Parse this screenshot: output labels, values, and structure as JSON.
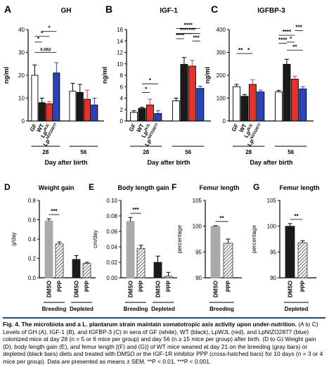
{
  "caption": {
    "lead": "Fig. 4. The microbiota and a L. plantarum strain maintain somatotropic axis activity upon under-nutrition.",
    "body": "(A to C) Levels of GH (A), IGF-1 (B), and IGFBP-3 (C) in sera of GF (white), WT (black), LpWJL (red), and LpNIZO2877 (blue) colonized mice at day 28 (n = 5 or 6 mice per group) and day 56 (n ≥ 15 mice per group) after birth. (D to G) Weight gain (D), body length gain (E), and femur length [(F) and (G)] of WT mice weaned at day 21 on the breeding (gray bars) or depleted (black bars) diets and treated with DMSO or the IGF-1R inhibitor PPP (cross-hatched bars) for 10 days (n = 3 or 4 mice per group). Data are presented as means ± SEM. **P < 0.01, ***P < 0.001."
  },
  "colors": {
    "GF": "#ffffff",
    "WT": "#1a1a1a",
    "LpWJL": "#e8312f",
    "LpNIZO2877": "#2b43b8",
    "DMSO_breeding": "#a9a9a9",
    "depleted": "#1a1a1a"
  },
  "chart_data": [
    {
      "panel": "A",
      "type": "bar",
      "title": "GH",
      "ylabel": "ng/ml",
      "xlabel": "Day after birth",
      "ylim": [
        0,
        40
      ],
      "yticks": [
        0,
        10,
        20,
        30,
        40
      ],
      "groups": [
        {
          "label": "28",
          "bars": [
            "GF",
            "WT",
            "LpWJL",
            "LpNIZO2877"
          ]
        },
        {
          "label": "56",
          "bars": [
            "GF",
            "WT",
            "LpWJL",
            "LpNIZO2877"
          ]
        }
      ],
      "bar_labels": [
        "GF",
        "WT",
        "LpWJL",
        "LpNIZO2877"
      ],
      "series": [
        {
          "name": "GF",
          "values": [
            20,
            13
          ],
          "errors": [
            4.5,
            3.5
          ]
        },
        {
          "name": "WT",
          "values": [
            8,
            12.5
          ],
          "errors": [
            2,
            3.5
          ]
        },
        {
          "name": "LpWJL",
          "values": [
            7.5,
            9.5
          ],
          "errors": [
            1,
            4
          ]
        },
        {
          "name": "LpNIZO2877",
          "values": [
            21,
            7
          ],
          "errors": [
            4.5,
            3
          ]
        }
      ],
      "annotations": [
        "0.063",
        "*",
        "*",
        "*"
      ]
    },
    {
      "panel": "B",
      "type": "bar",
      "title": "IGF-1",
      "ylabel": "ng/ml",
      "xlabel": "Day after birth",
      "ylim": [
        0,
        16
      ],
      "yticks": [
        0,
        2,
        4,
        6,
        8,
        10,
        12,
        14,
        16
      ],
      "groups": [
        {
          "label": "28"
        },
        {
          "label": "56"
        }
      ],
      "bar_labels": [
        "GF",
        "WT",
        "LpWJL",
        "LpNIZO2877"
      ],
      "series": [
        {
          "name": "GF",
          "values": [
            1.5,
            3.5
          ],
          "errors": [
            0.3,
            0.5
          ]
        },
        {
          "name": "WT",
          "values": [
            2.2,
            9.9
          ],
          "errors": [
            0.2,
            1.2
          ]
        },
        {
          "name": "LpWJL",
          "values": [
            2.8,
            9.6
          ],
          "errors": [
            1,
            1
          ]
        },
        {
          "name": "LpNIZO2877",
          "values": [
            1.3,
            5.7
          ],
          "errors": [
            0.5,
            0.4
          ]
        }
      ],
      "annotations": [
        "*",
        "*",
        "****",
        "****",
        "***",
        "****",
        "***"
      ]
    },
    {
      "panel": "C",
      "type": "bar",
      "title": "IGFBP-3",
      "ylabel": "ng/ml",
      "xlabel": "Day after birth",
      "ylim": [
        0,
        400
      ],
      "yticks": [
        0,
        100,
        200,
        300,
        400
      ],
      "groups": [
        {
          "label": "28"
        },
        {
          "label": "56"
        }
      ],
      "bar_labels": [
        "GF",
        "WT",
        "LpWJL",
        "LpNIZO2877"
      ],
      "series": [
        {
          "name": "GF",
          "values": [
            150,
            127
          ],
          "errors": [
            10,
            7
          ]
        },
        {
          "name": "WT",
          "values": [
            108,
            248
          ],
          "errors": [
            8,
            22
          ]
        },
        {
          "name": "LpWJL",
          "values": [
            160,
            183
          ],
          "errors": [
            20,
            12
          ]
        },
        {
          "name": "LpNIZO2877",
          "values": [
            127,
            140
          ],
          "errors": [
            8,
            10
          ]
        }
      ],
      "annotations": [
        "**",
        "*",
        "****",
        "*",
        "****",
        "**",
        "***"
      ]
    },
    {
      "panel": "D",
      "type": "bar",
      "title": "Weight gain",
      "ylabel": "g/day",
      "ylim": [
        0,
        0.8
      ],
      "yticks": [
        0.0,
        0.2,
        0.4,
        0.6,
        0.8
      ],
      "categories": [
        "DMSO",
        "PPP",
        "DMSO",
        "PPP"
      ],
      "groups": [
        "Breeding",
        "Depleted"
      ],
      "values": [
        0.59,
        0.35,
        0.19,
        0.15
      ],
      "errors": [
        0.02,
        0.02,
        0.04,
        0.01
      ],
      "annotations": [
        "***"
      ]
    },
    {
      "panel": "E",
      "type": "bar",
      "title": "Body length gain",
      "ylabel": "cm/day",
      "ylim": [
        0,
        0.1
      ],
      "yticks": [
        0.0,
        0.02,
        0.04,
        0.06,
        0.08,
        0.1
      ],
      "categories": [
        "DMSO",
        "PPP",
        "DMSO",
        "PPP"
      ],
      "groups": [
        "Breeding",
        "Depleted"
      ],
      "values": [
        0.073,
        0.038,
        0.02,
        0.002
      ],
      "errors": [
        0.005,
        0.004,
        0.008,
        0.005
      ],
      "annotations": [
        "***"
      ]
    },
    {
      "panel": "F",
      "type": "bar",
      "title": "Femur length",
      "ylabel": "percentage",
      "ylim": [
        90,
        105
      ],
      "yticks": [
        90,
        95,
        100,
        105
      ],
      "categories": [
        "DMSO",
        "PPP"
      ],
      "groups": [
        "Breeding"
      ],
      "values": [
        100,
        96.7
      ],
      "errors": [
        0.1,
        0.8
      ],
      "annotations": [
        "**"
      ]
    },
    {
      "panel": "G",
      "type": "bar",
      "title": "Femur length",
      "ylabel": "percentage",
      "ylim": [
        90,
        105
      ],
      "yticks": [
        90,
        95,
        100,
        105
      ],
      "categories": [
        "DMSO",
        "PPP"
      ],
      "groups": [
        "Depleted"
      ],
      "values": [
        100,
        96.8
      ],
      "errors": [
        0.5,
        0.4
      ],
      "annotations": [
        "**"
      ]
    }
  ]
}
